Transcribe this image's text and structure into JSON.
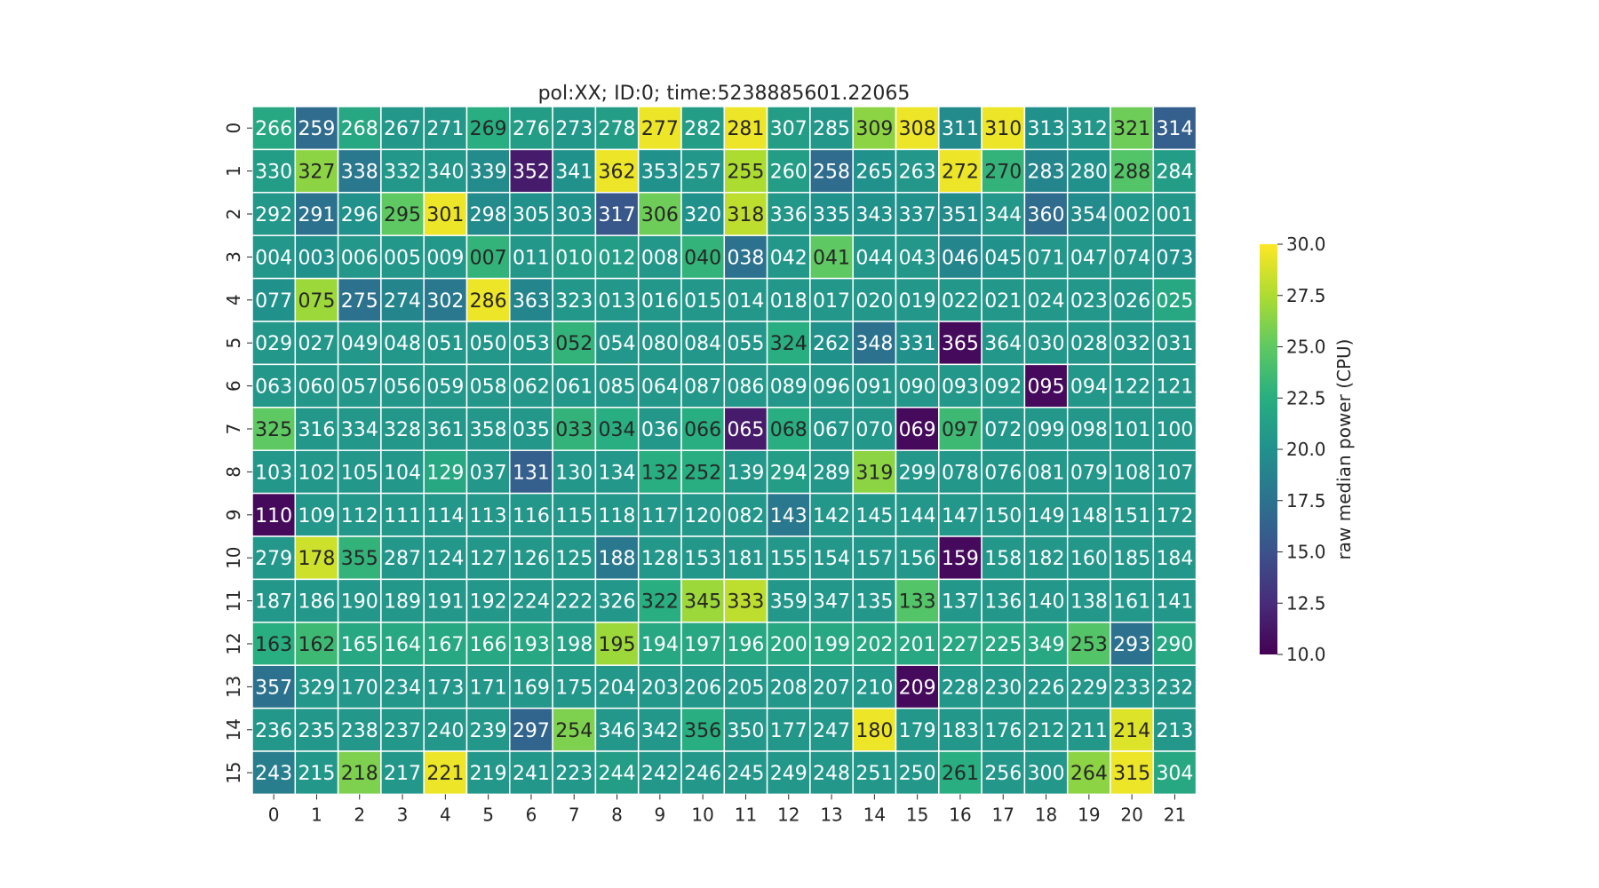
{
  "chart_data": {
    "type": "heatmap",
    "title": "pol:XX; ID:0; time:5238885601.22065",
    "x_ticks": [
      "0",
      "1",
      "2",
      "3",
      "4",
      "5",
      "6",
      "7",
      "8",
      "9",
      "10",
      "11",
      "12",
      "13",
      "14",
      "15",
      "16",
      "17",
      "18",
      "19",
      "20",
      "21"
    ],
    "y_ticks": [
      "0",
      "1",
      "2",
      "3",
      "4",
      "5",
      "6",
      "7",
      "8",
      "9",
      "10",
      "11",
      "12",
      "13",
      "14",
      "15"
    ],
    "colorbar": {
      "label": "raw median power (CPU)",
      "min": 10.0,
      "max": 30.0,
      "ticks": [
        "10.0",
        "12.5",
        "15.0",
        "17.5",
        "20.0",
        "22.5",
        "25.0",
        "27.5",
        "30.0"
      ],
      "colormap": "viridis"
    },
    "annotations": [
      [
        "266",
        "259",
        "268",
        "267",
        "271",
        "269",
        "276",
        "273",
        "278",
        "277",
        "282",
        "281",
        "307",
        "285",
        "309",
        "308",
        "311",
        "310",
        "313",
        "312",
        "321",
        "314"
      ],
      [
        "330",
        "327",
        "338",
        "332",
        "340",
        "339",
        "352",
        "341",
        "362",
        "353",
        "257",
        "255",
        "260",
        "258",
        "265",
        "263",
        "272",
        "270",
        "283",
        "280",
        "288",
        "284"
      ],
      [
        "292",
        "291",
        "296",
        "295",
        "301",
        "298",
        "305",
        "303",
        "317",
        "306",
        "320",
        "318",
        "336",
        "335",
        "343",
        "337",
        "351",
        "344",
        "360",
        "354",
        "002",
        "001"
      ],
      [
        "004",
        "003",
        "006",
        "005",
        "009",
        "007",
        "011",
        "010",
        "012",
        "008",
        "040",
        "038",
        "042",
        "041",
        "044",
        "043",
        "046",
        "045",
        "071",
        "047",
        "074",
        "073"
      ],
      [
        "077",
        "075",
        "275",
        "274",
        "302",
        "286",
        "363",
        "323",
        "013",
        "016",
        "015",
        "014",
        "018",
        "017",
        "020",
        "019",
        "022",
        "021",
        "024",
        "023",
        "026",
        "025"
      ],
      [
        "029",
        "027",
        "049",
        "048",
        "051",
        "050",
        "053",
        "052",
        "054",
        "080",
        "084",
        "055",
        "324",
        "262",
        "348",
        "331",
        "365",
        "364",
        "030",
        "028",
        "032",
        "031"
      ],
      [
        "063",
        "060",
        "057",
        "056",
        "059",
        "058",
        "062",
        "061",
        "085",
        "064",
        "087",
        "086",
        "089",
        "096",
        "091",
        "090",
        "093",
        "092",
        "095",
        "094",
        "122",
        "121"
      ],
      [
        "325",
        "316",
        "334",
        "328",
        "361",
        "358",
        "035",
        "033",
        "034",
        "036",
        "066",
        "065",
        "068",
        "067",
        "070",
        "069",
        "097",
        "072",
        "099",
        "098",
        "101",
        "100"
      ],
      [
        "103",
        "102",
        "105",
        "104",
        "129",
        "037",
        "131",
        "130",
        "134",
        "132",
        "252",
        "139",
        "294",
        "289",
        "319",
        "299",
        "078",
        "076",
        "081",
        "079",
        "108",
        "107"
      ],
      [
        "110",
        "109",
        "112",
        "111",
        "114",
        "113",
        "116",
        "115",
        "118",
        "117",
        "120",
        "082",
        "143",
        "142",
        "145",
        "144",
        "147",
        "150",
        "149",
        "148",
        "151",
        "172"
      ],
      [
        "279",
        "178",
        "355",
        "287",
        "124",
        "127",
        "126",
        "125",
        "188",
        "128",
        "153",
        "181",
        "155",
        "154",
        "157",
        "156",
        "159",
        "158",
        "182",
        "160",
        "185",
        "184"
      ],
      [
        "187",
        "186",
        "190",
        "189",
        "191",
        "192",
        "224",
        "222",
        "326",
        "322",
        "345",
        "333",
        "359",
        "347",
        "135",
        "133",
        "137",
        "136",
        "140",
        "138",
        "161",
        "141"
      ],
      [
        "163",
        "162",
        "165",
        "164",
        "167",
        "166",
        "193",
        "198",
        "195",
        "194",
        "197",
        "196",
        "200",
        "199",
        "202",
        "201",
        "227",
        "225",
        "349",
        "253",
        "293",
        "290"
      ],
      [
        "357",
        "329",
        "170",
        "234",
        "173",
        "171",
        "169",
        "175",
        "204",
        "203",
        "206",
        "205",
        "208",
        "207",
        "210",
        "209",
        "228",
        "230",
        "226",
        "229",
        "233",
        "232"
      ],
      [
        "236",
        "235",
        "238",
        "237",
        "240",
        "239",
        "297",
        "254",
        "346",
        "342",
        "356",
        "350",
        "177",
        "247",
        "180",
        "179",
        "183",
        "176",
        "212",
        "211",
        "214",
        "213"
      ],
      [
        "243",
        "215",
        "218",
        "217",
        "221",
        "219",
        "241",
        "223",
        "244",
        "242",
        "246",
        "245",
        "249",
        "248",
        "251",
        "250",
        "261",
        "256",
        "300",
        "264",
        "315",
        "304"
      ]
    ],
    "values": [
      [
        22.0,
        17.0,
        22.0,
        20.5,
        20.5,
        22.5,
        21.0,
        20.5,
        21.0,
        29.5,
        21.0,
        29.5,
        21.0,
        20.5,
        26.5,
        29.5,
        19.5,
        29.5,
        20.0,
        20.5,
        25.5,
        16.0
      ],
      [
        21.0,
        26.5,
        18.0,
        20.5,
        20.5,
        19.5,
        11.5,
        20.0,
        29.5,
        20.0,
        20.5,
        27.5,
        21.0,
        17.0,
        20.0,
        20.5,
        29.5,
        23.0,
        19.0,
        20.0,
        24.5,
        21.0
      ],
      [
        20.5,
        17.5,
        20.0,
        25.0,
        29.5,
        19.5,
        20.0,
        20.0,
        15.5,
        25.5,
        20.0,
        28.0,
        20.5,
        20.0,
        20.0,
        20.0,
        19.5,
        20.5,
        17.0,
        19.5,
        20.5,
        20.5
      ],
      [
        20.5,
        20.0,
        20.5,
        20.5,
        20.5,
        23.0,
        20.5,
        21.0,
        21.0,
        20.5,
        23.0,
        17.5,
        20.5,
        25.0,
        20.5,
        20.5,
        19.0,
        20.0,
        20.5,
        20.5,
        20.5,
        20.0
      ],
      [
        20.0,
        27.0,
        17.5,
        19.0,
        18.0,
        29.5,
        19.0,
        20.5,
        20.5,
        20.5,
        20.5,
        20.5,
        20.5,
        20.5,
        20.5,
        20.5,
        20.5,
        20.5,
        20.5,
        20.5,
        20.5,
        22.0
      ],
      [
        20.5,
        20.5,
        20.5,
        20.5,
        20.5,
        20.5,
        20.5,
        23.0,
        20.5,
        20.5,
        20.5,
        20.5,
        22.5,
        20.0,
        17.5,
        20.0,
        10.5,
        20.5,
        20.5,
        20.5,
        20.5,
        20.5
      ],
      [
        20.5,
        20.5,
        20.5,
        20.5,
        20.5,
        20.5,
        20.5,
        20.5,
        20.5,
        20.5,
        20.5,
        20.5,
        20.5,
        20.5,
        20.5,
        20.5,
        20.5,
        20.5,
        10.5,
        20.5,
        20.5,
        20.5
      ],
      [
        25.0,
        20.5,
        20.5,
        20.5,
        20.5,
        20.5,
        20.5,
        23.0,
        22.5,
        20.5,
        22.5,
        11.5,
        22.5,
        20.5,
        20.5,
        10.5,
        23.5,
        20.5,
        20.5,
        20.5,
        20.5,
        20.5
      ],
      [
        20.5,
        20.5,
        20.5,
        20.5,
        22.0,
        20.5,
        16.0,
        20.5,
        20.5,
        22.5,
        22.5,
        20.5,
        21.0,
        20.5,
        26.5,
        20.5,
        20.5,
        20.5,
        20.5,
        20.5,
        20.5,
        20.5
      ],
      [
        10.5,
        20.5,
        20.5,
        20.5,
        20.5,
        20.5,
        20.5,
        20.5,
        20.5,
        20.5,
        20.5,
        20.5,
        18.0,
        20.5,
        20.5,
        20.5,
        20.5,
        20.5,
        20.5,
        20.5,
        20.5,
        20.5
      ],
      [
        20.5,
        28.5,
        23.0,
        20.5,
        20.5,
        20.5,
        20.5,
        20.5,
        18.0,
        20.5,
        20.5,
        20.5,
        20.5,
        20.5,
        20.5,
        20.5,
        10.5,
        20.5,
        20.5,
        20.5,
        20.5,
        20.5
      ],
      [
        20.5,
        20.5,
        20.5,
        20.5,
        20.5,
        20.5,
        20.5,
        20.5,
        20.5,
        22.5,
        27.0,
        28.0,
        20.5,
        20.5,
        20.5,
        24.5,
        20.5,
        20.5,
        20.5,
        20.5,
        20.5,
        20.5
      ],
      [
        22.5,
        23.5,
        22.0,
        22.0,
        22.0,
        22.0,
        22.0,
        21.5,
        27.0,
        22.0,
        22.0,
        22.0,
        22.0,
        22.0,
        22.0,
        22.0,
        22.0,
        22.0,
        22.0,
        24.5,
        17.5,
        22.0
      ],
      [
        17.5,
        20.5,
        20.5,
        20.5,
        20.5,
        20.5,
        20.5,
        20.5,
        20.5,
        20.5,
        20.5,
        20.5,
        20.5,
        20.5,
        20.5,
        10.5,
        20.5,
        20.5,
        20.5,
        20.5,
        20.5,
        20.5
      ],
      [
        20.5,
        20.5,
        20.5,
        20.5,
        20.5,
        20.5,
        16.5,
        26.0,
        20.5,
        20.5,
        22.5,
        20.5,
        20.5,
        20.5,
        29.5,
        20.5,
        20.5,
        20.5,
        20.5,
        20.5,
        29.0,
        20.5
      ],
      [
        18.5,
        20.5,
        26.0,
        20.5,
        29.5,
        20.5,
        20.5,
        20.5,
        21.0,
        20.5,
        20.5,
        20.5,
        20.5,
        20.5,
        20.5,
        20.5,
        22.5,
        20.5,
        20.5,
        26.5,
        29.5,
        22.0
      ]
    ]
  }
}
